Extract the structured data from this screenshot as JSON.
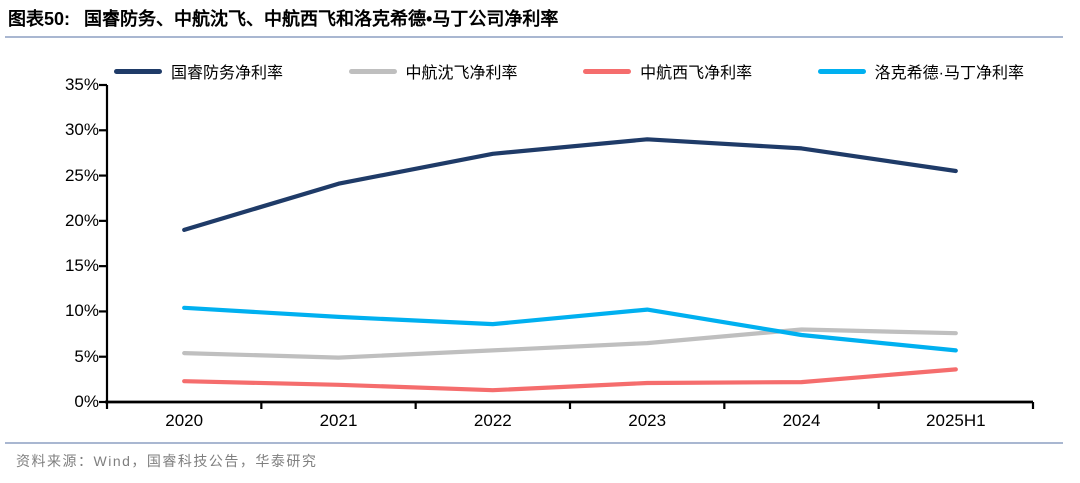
{
  "header": {
    "tag": "图表50:",
    "title": "国睿防务、中航沈飞、中航西飞和洛克希德•马丁公司净利率"
  },
  "footer": {
    "source": "资料来源：Wind，国睿科技公告，华泰研究"
  },
  "colors": {
    "divider": "#a9b7d1",
    "axis": "#000000",
    "series_navy": "#1f3b68",
    "series_gray": "#bfbfbf",
    "series_red": "#f56d6d",
    "series_cyan": "#00b0f0"
  },
  "chart_data": {
    "type": "line",
    "categories": [
      "2020",
      "2021",
      "2022",
      "2023",
      "2024",
      "2025H1"
    ],
    "series": [
      {
        "name": "国睿防务净利率",
        "color": "#1f3b68",
        "values": [
          19.0,
          24.1,
          27.4,
          29.0,
          28.0,
          25.5
        ]
      },
      {
        "name": "中航沈飞净利率",
        "color": "#bfbfbf",
        "values": [
          5.4,
          4.9,
          5.7,
          6.5,
          8.0,
          7.6
        ]
      },
      {
        "name": "中航西飞净利率",
        "color": "#f56d6d",
        "values": [
          2.3,
          1.9,
          1.3,
          2.1,
          2.2,
          3.6
        ]
      },
      {
        "name": "洛克希德·马丁净利率",
        "color": "#00b0f0",
        "values": [
          10.4,
          9.4,
          8.6,
          10.2,
          7.4,
          5.7
        ]
      }
    ],
    "title": "国睿防务、中航沈飞、中航西飞和洛克希德•马丁公司净利率",
    "xlabel": "",
    "ylabel": "",
    "ylim": [
      0,
      35
    ],
    "ytick_step": 5,
    "ytick_labels": [
      "0%",
      "5%",
      "10%",
      "15%",
      "20%",
      "25%",
      "30%",
      "35%"
    ],
    "legend_position": "top",
    "grid": false
  }
}
